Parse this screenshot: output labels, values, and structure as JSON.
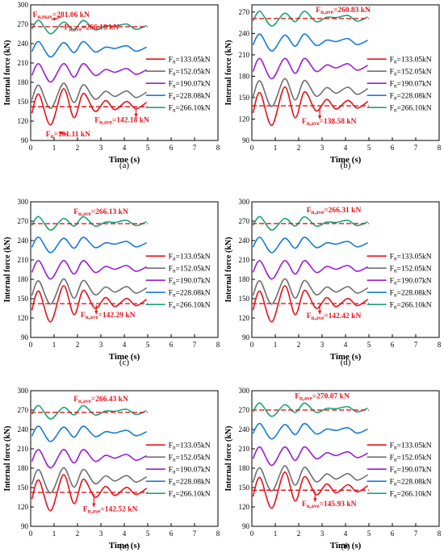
{
  "colors": {
    "red": "#e8141c",
    "gray": "#707070",
    "purple": "#9b1ed8",
    "blue": "#1a7bd6",
    "green": "#1aa57a",
    "annotation": "#e8141c",
    "axis": "#000000"
  },
  "chart_data": [
    {
      "type": "line",
      "caption": "(a)",
      "xlabel": "Time (s)",
      "ylabel": "Internal force (kN)",
      "xlim": [
        0,
        8
      ],
      "ylim": [
        90,
        300
      ],
      "xticks": [
        "0",
        "1",
        "2",
        "3",
        "4",
        "5",
        "6",
        "7",
        "8"
      ],
      "yticks": [
        "90",
        "120",
        "150",
        "180",
        "210",
        "240",
        "270",
        "300"
      ],
      "legend_position": "right",
      "series": [
        {
          "name": "F_n=133.05kN",
          "sub": "n",
          "lead": "F",
          "rest": "=133.05kN",
          "color": "red",
          "base": 142,
          "amp": 28,
          "rot": 0
        },
        {
          "name": "F_n=152.05kN",
          "sub": "n",
          "lead": "F",
          "rest": "=152.05kN",
          "color": "gray",
          "base": 160,
          "amp": 20,
          "rot": 0.3
        },
        {
          "name": "F_n=190.07kN",
          "sub": "n",
          "lead": "F",
          "rest": "=190.07kN",
          "color": "purple",
          "base": 196,
          "amp": 15,
          "rot": 0.6
        },
        {
          "name": "F_n=228.08kN",
          "sub": "n",
          "lead": "F",
          "rest": "=228.08kN",
          "color": "blue",
          "base": 232,
          "amp": 12,
          "rot": 0.9
        },
        {
          "name": "F_n=266.10kN",
          "sub": "n",
          "lead": "F",
          "rest": "=266.10kN",
          "color": "green",
          "base": 266,
          "amp": 10,
          "rot": 1.2
        }
      ],
      "ref_lines": [
        266.18,
        142.18
      ],
      "annotations": [
        {
          "lead": "F",
          "sub": "n,max",
          "rest": "=281.06 kN",
          "x": 1.3,
          "y": 281,
          "arrow": [
            [
              1.3,
              281
            ],
            [
              0.9,
              277
            ]
          ]
        },
        {
          "lead": "F",
          "sub": "n,ave",
          "rest": "=266.18 kN",
          "x": 2.6,
          "y": 262,
          "arrow": null
        },
        {
          "lead": "F",
          "sub": "n",
          "rest": "=101.11 kN",
          "x": 1.6,
          "y": 96,
          "arrow": [
            [
              1.6,
              99
            ],
            [
              1.2,
              103
            ]
          ]
        },
        {
          "lead": "F",
          "sub": "n,ave",
          "rest": "=142.18 kN",
          "x": 3.9,
          "y": 118,
          "arrow": [
            [
              4.5,
              140
            ],
            [
              4.5,
              126
            ]
          ]
        }
      ]
    },
    {
      "type": "line",
      "caption": "(b)",
      "xlabel": "Time (s)",
      "ylabel": "Internal force (kN)",
      "xlim": [
        0,
        8
      ],
      "ylim": [
        90,
        280
      ],
      "xticks": [
        "0",
        "1",
        "2",
        "3",
        "4",
        "5",
        "6",
        "7",
        "8"
      ],
      "yticks": [
        "90",
        "120",
        "150",
        "180",
        "210",
        "240",
        "270"
      ],
      "legend_position": "right",
      "series": [
        {
          "name": "F_n=133.05kN",
          "sub": "n",
          "lead": "F",
          "rest": "=133.05kN",
          "color": "red",
          "base": 138,
          "amp": 27,
          "rot": 0
        },
        {
          "name": "F_n=152.05kN",
          "sub": "n",
          "lead": "F",
          "rest": "=152.05kN",
          "color": "gray",
          "base": 158,
          "amp": 20,
          "rot": 0.3
        },
        {
          "name": "F_n=190.07kN",
          "sub": "n",
          "lead": "F",
          "rest": "=190.07kN",
          "color": "purple",
          "base": 192,
          "amp": 15,
          "rot": 0.6
        },
        {
          "name": "F_n=228.08kN",
          "sub": "n",
          "lead": "F",
          "rest": "=228.08kN",
          "color": "blue",
          "base": 228,
          "amp": 12,
          "rot": 0.9
        },
        {
          "name": "F_n=266.10kN",
          "sub": "n",
          "lead": "F",
          "rest": "=266.10kN",
          "color": "green",
          "base": 261,
          "amp": 10,
          "rot": 1.2
        }
      ],
      "ref_lines": [
        260.83,
        138.58
      ],
      "annotations": [
        {
          "lead": "F",
          "sub": "n,ave",
          "rest": "=260.83 kN",
          "x": 3.9,
          "y": 270,
          "arrow": null
        },
        {
          "lead": "F",
          "sub": "n,ave",
          "rest": "=138.58 kN",
          "x": 3.3,
          "y": 114,
          "arrow": [
            [
              2.9,
              137
            ],
            [
              2.9,
              120
            ]
          ]
        }
      ]
    },
    {
      "type": "line",
      "caption": "(c)",
      "xlabel": "Time (s)",
      "ylabel": "Internal force (kN)",
      "xlim": [
        0,
        8
      ],
      "ylim": [
        90,
        300
      ],
      "xticks": [
        "0",
        "1",
        "2",
        "3",
        "4",
        "5",
        "6",
        "7",
        "8"
      ],
      "yticks": [
        "90",
        "120",
        "150",
        "180",
        "210",
        "240",
        "270",
        "300"
      ],
      "legend_position": "right",
      "series": [
        {
          "name": "F_n=133.05kN",
          "sub": "n",
          "lead": "F",
          "rest": "=133.05kN",
          "color": "red",
          "base": 142,
          "amp": 28,
          "rot": 0
        },
        {
          "name": "F_n=152.05kN",
          "sub": "n",
          "lead": "F",
          "rest": "=152.05kN",
          "color": "gray",
          "base": 162,
          "amp": 20,
          "rot": 0.3
        },
        {
          "name": "F_n=190.07kN",
          "sub": "n",
          "lead": "F",
          "rest": "=190.07kN",
          "color": "purple",
          "base": 196,
          "amp": 15,
          "rot": 0.6
        },
        {
          "name": "F_n=228.08kN",
          "sub": "n",
          "lead": "F",
          "rest": "=228.08kN",
          "color": "blue",
          "base": 234,
          "amp": 12,
          "rot": 0.9
        },
        {
          "name": "F_n=266.10kN",
          "sub": "n",
          "lead": "F",
          "rest": "=266.10kN",
          "color": "green",
          "base": 267,
          "amp": 10,
          "rot": 1.2
        }
      ],
      "ref_lines": [
        266.13,
        142.29
      ],
      "annotations": [
        {
          "lead": "F",
          "sub": "n,ave",
          "rest": "=266.13 kN",
          "x": 3.0,
          "y": 281,
          "arrow": null
        },
        {
          "lead": "F",
          "sub": "n,ave",
          "rest": "=142.29 kN",
          "x": 3.3,
          "y": 121,
          "arrow": [
            [
              2.8,
              140
            ],
            [
              2.8,
              126
            ]
          ]
        }
      ]
    },
    {
      "type": "line",
      "caption": "(d)",
      "xlabel": "Time (s)",
      "ylabel": "Internal force (kN)",
      "xlim": [
        0,
        8
      ],
      "ylim": [
        90,
        300
      ],
      "xticks": [
        "0",
        "1",
        "2",
        "3",
        "4",
        "5",
        "6",
        "7",
        "8"
      ],
      "yticks": [
        "90",
        "120",
        "150",
        "180",
        "210",
        "240",
        "270",
        "300"
      ],
      "legend_position": "right",
      "series": [
        {
          "name": "F_n=133.05kN",
          "sub": "n",
          "lead": "F",
          "rest": "=133.05kN",
          "color": "red",
          "base": 142,
          "amp": 28,
          "rot": 0
        },
        {
          "name": "F_n=152.05kN",
          "sub": "n",
          "lead": "F",
          "rest": "=152.05kN",
          "color": "gray",
          "base": 162,
          "amp": 20,
          "rot": 0.3
        },
        {
          "name": "F_n=190.07kN",
          "sub": "n",
          "lead": "F",
          "rest": "=190.07kN",
          "color": "purple",
          "base": 196,
          "amp": 15,
          "rot": 0.6
        },
        {
          "name": "F_n=228.08kN",
          "sub": "n",
          "lead": "F",
          "rest": "=228.08kN",
          "color": "blue",
          "base": 234,
          "amp": 12,
          "rot": 0.9
        },
        {
          "name": "F_n=266.10kN",
          "sub": "n",
          "lead": "F",
          "rest": "=266.10kN",
          "color": "green",
          "base": 267,
          "amp": 10,
          "rot": 1.2
        }
      ],
      "ref_lines": [
        266.31,
        142.42
      ],
      "annotations": [
        {
          "lead": "F",
          "sub": "n,ave",
          "rest": "=266.31 kN",
          "x": 3.5,
          "y": 284,
          "arrow": null
        },
        {
          "lead": "F",
          "sub": "n,ave",
          "rest": "=142.42 kN",
          "x": 3.5,
          "y": 120,
          "arrow": [
            [
              2.9,
              141
            ],
            [
              2.9,
              126
            ]
          ]
        }
      ]
    },
    {
      "type": "line",
      "caption": "(e)",
      "xlabel": "Time (s)",
      "ylabel": "Internal force (kN)",
      "xlim": [
        0,
        8
      ],
      "ylim": [
        90,
        300
      ],
      "xticks": [
        "0",
        "1",
        "2",
        "3",
        "4",
        "5",
        "6",
        "7",
        "8"
      ],
      "yticks": [
        "90",
        "120",
        "150",
        "180",
        "210",
        "240",
        "270",
        "300"
      ],
      "legend_position": "right",
      "series": [
        {
          "name": "F_n=133.05kN",
          "sub": "n",
          "lead": "F",
          "rest": "=133.05kN",
          "color": "red",
          "base": 142,
          "amp": 28,
          "rot": 0
        },
        {
          "name": "F_n=152.05kN",
          "sub": "n",
          "lead": "F",
          "rest": "=152.05kN",
          "color": "gray",
          "base": 162,
          "amp": 20,
          "rot": 0.3
        },
        {
          "name": "F_n=190.07kN",
          "sub": "n",
          "lead": "F",
          "rest": "=190.07kN",
          "color": "purple",
          "base": 196,
          "amp": 15,
          "rot": 0.6
        },
        {
          "name": "F_n=228.08kN",
          "sub": "n",
          "lead": "F",
          "rest": "=228.08kN",
          "color": "blue",
          "base": 234,
          "amp": 12,
          "rot": 0.9
        },
        {
          "name": "F_n=266.10kN",
          "sub": "n",
          "lead": "F",
          "rest": "=266.10kN",
          "color": "green",
          "base": 267,
          "amp": 10,
          "rot": 1.2
        }
      ],
      "ref_lines": [
        266.43,
        142.52
      ],
      "annotations": [
        {
          "lead": "F",
          "sub": "n,ave",
          "rest": "=266.43 kN",
          "x": 3.0,
          "y": 284,
          "arrow": null
        },
        {
          "lead": "F",
          "sub": "n,ave",
          "rest": "=142.52 kN",
          "x": 3.4,
          "y": 113,
          "arrow": [
            [
              2.7,
              140
            ],
            [
              2.7,
              120
            ]
          ]
        }
      ]
    },
    {
      "type": "line",
      "caption": "(f)",
      "xlabel": "Time (s)",
      "ylabel": "Internal force (kN)",
      "xlim": [
        0,
        8
      ],
      "ylim": [
        90,
        300
      ],
      "xticks": [
        "0",
        "1",
        "2",
        "3",
        "4",
        "5",
        "6",
        "7",
        "8"
      ],
      "yticks": [
        "90",
        "120",
        "150",
        "180",
        "210",
        "240",
        "270",
        "300"
      ],
      "legend_position": "right",
      "series": [
        {
          "name": "F_n=133.05kN",
          "sub": "n",
          "lead": "F",
          "rest": "=133.05kN",
          "color": "red",
          "base": 146,
          "amp": 28,
          "rot": 0
        },
        {
          "name": "F_n=152.05kN",
          "sub": "n",
          "lead": "F",
          "rest": "=152.05kN",
          "color": "gray",
          "base": 165,
          "amp": 20,
          "rot": 0.3
        },
        {
          "name": "F_n=190.07kN",
          "sub": "n",
          "lead": "F",
          "rest": "=190.07kN",
          "color": "purple",
          "base": 200,
          "amp": 15,
          "rot": 0.6
        },
        {
          "name": "F_n=228.08kN",
          "sub": "n",
          "lead": "F",
          "rest": "=228.08kN",
          "color": "blue",
          "base": 238,
          "amp": 12,
          "rot": 0.9
        },
        {
          "name": "F_n=266.10kN",
          "sub": "n",
          "lead": "F",
          "rest": "=266.10kN",
          "color": "green",
          "base": 271,
          "amp": 10,
          "rot": 1.2
        }
      ],
      "ref_lines": [
        270.07,
        145.93
      ],
      "annotations": [
        {
          "lead": "F",
          "sub": "n,ave",
          "rest": "=270.07 kN",
          "x": 3.0,
          "y": 288,
          "arrow": null
        },
        {
          "lead": "F",
          "sub": "n,ave",
          "rest": "=145.93 kN",
          "x": 3.3,
          "y": 121,
          "arrow": [
            [
              2.7,
              144
            ],
            [
              2.7,
              128
            ]
          ]
        }
      ]
    }
  ]
}
